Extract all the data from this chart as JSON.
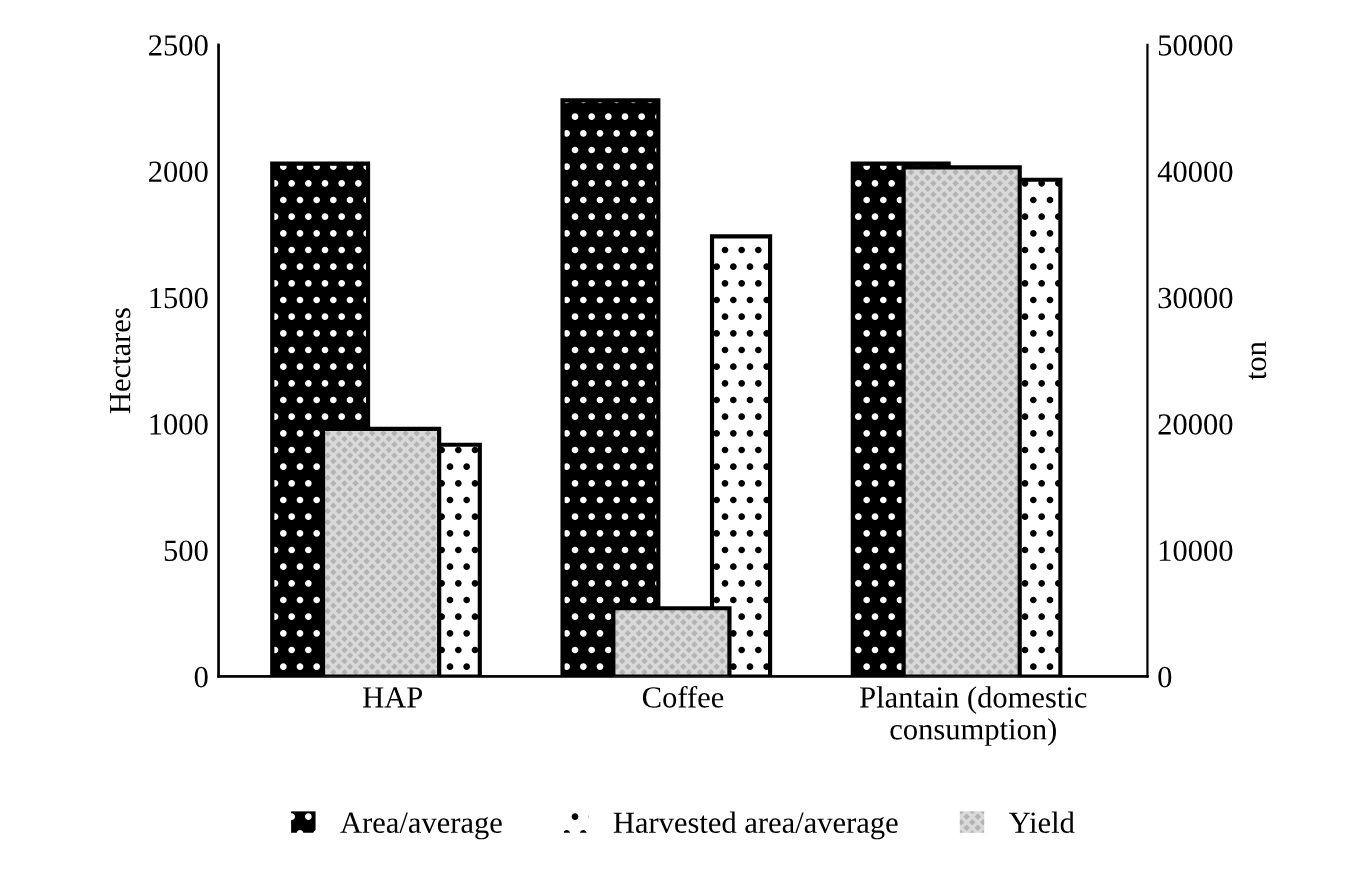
{
  "chart_data": {
    "type": "bar",
    "categories": [
      "HAP",
      "Coffee",
      "Plantain (domestic consumption)"
    ],
    "ylabel": "Hectares",
    "y2label": "ton",
    "ylim": [
      0,
      2500
    ],
    "yticks": [
      0,
      500,
      1000,
      1500,
      2000,
      2500
    ],
    "y2lim": [
      0,
      50000
    ],
    "y2ticks": [
      0,
      10000,
      20000,
      30000,
      40000,
      50000
    ],
    "series": [
      {
        "name": "Area/average",
        "color": "#000000",
        "values": [
          2030,
          2280,
          2030
        ]
      },
      {
        "name": "Harvested area/average",
        "color": "#ffffff",
        "values": [
          917,
          1742,
          1966
        ]
      },
      {
        "name": "Yield",
        "color": "#b3b3b3",
        "values": [
          19600,
          5400,
          40300
        ],
        "axis": "y2"
      }
    ],
    "legend": "bottom",
    "grid": false
  }
}
